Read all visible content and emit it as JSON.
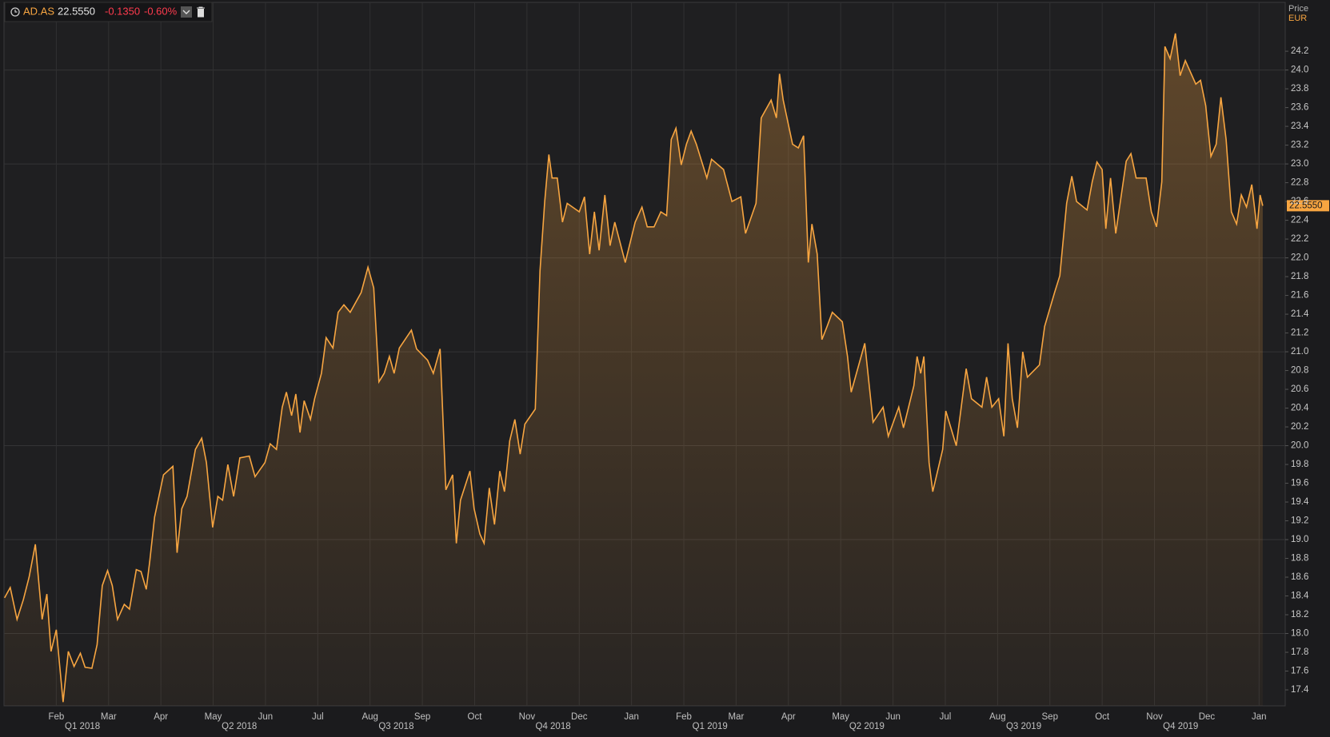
{
  "header": {
    "symbol": "AD.AS",
    "price": "22.5550",
    "change": "-0.1350",
    "change_pct": "-0.60%"
  },
  "chart_data": {
    "type": "area",
    "y_label": "Price",
    "y_unit": "EUR",
    "last_label": "22.5550",
    "color": "#f7a541",
    "grid": true,
    "xlim": [
      0,
      24.5
    ],
    "ylim": [
      17.23,
      24.72
    ],
    "xticks": [
      {
        "value": 1,
        "label": "Feb"
      },
      {
        "value": 2,
        "label": "Mar"
      },
      {
        "value": 3,
        "label": "Apr"
      },
      {
        "value": 4,
        "label": "May"
      },
      {
        "value": 5,
        "label": "Jun"
      },
      {
        "value": 6,
        "label": "Jul"
      },
      {
        "value": 7,
        "label": "Aug"
      },
      {
        "value": 8,
        "label": "Sep"
      },
      {
        "value": 9,
        "label": "Oct"
      },
      {
        "value": 10,
        "label": "Nov"
      },
      {
        "value": 11,
        "label": "Dec"
      },
      {
        "value": 12,
        "label": "Jan"
      },
      {
        "value": 13,
        "label": "Feb"
      },
      {
        "value": 14,
        "label": "Mar"
      },
      {
        "value": 15,
        "label": "Apr"
      },
      {
        "value": 16,
        "label": "May"
      },
      {
        "value": 17,
        "label": "Jun"
      },
      {
        "value": 18,
        "label": "Jul"
      },
      {
        "value": 19,
        "label": "Aug"
      },
      {
        "value": 20,
        "label": "Sep"
      },
      {
        "value": 21,
        "label": "Oct"
      },
      {
        "value": 22,
        "label": "Nov"
      },
      {
        "value": 23,
        "label": "Dec"
      },
      {
        "value": 24,
        "label": "Jan"
      }
    ],
    "xticks_quarter": [
      {
        "value": 1.5,
        "label": "Q1 2018"
      },
      {
        "value": 4.5,
        "label": "Q2 2018"
      },
      {
        "value": 7.5,
        "label": "Q3 2018"
      },
      {
        "value": 10.5,
        "label": "Q4 2018"
      },
      {
        "value": 13.5,
        "label": "Q1 2019"
      },
      {
        "value": 16.5,
        "label": "Q2 2019"
      },
      {
        "value": 19.5,
        "label": "Q3 2019"
      },
      {
        "value": 22.5,
        "label": "Q4 2019"
      }
    ],
    "yticks": [
      17.4,
      17.6,
      17.8,
      {
        "value": 18,
        "label": "18.0"
      },
      18.2,
      18.4,
      18.6,
      18.8,
      {
        "value": 19,
        "label": "19.0"
      },
      19.2,
      19.4,
      19.6,
      19.8,
      {
        "value": 20,
        "label": "20.0"
      },
      20.2,
      20.4,
      20.6,
      20.8,
      {
        "value": 21,
        "label": "21.0"
      },
      21.2,
      21.4,
      21.6,
      21.8,
      {
        "value": 22,
        "label": "22.0"
      },
      22.2,
      22.4,
      22.6,
      22.8,
      {
        "value": 23,
        "label": "23.0"
      },
      23.2,
      23.4,
      23.6,
      23.8,
      {
        "value": 24,
        "label": "24.0"
      },
      24.2
    ],
    "x": [
      0.01,
      0.12,
      0.25,
      0.37,
      0.48,
      0.6,
      0.73,
      0.82,
      0.9,
      1.0,
      1.13,
      1.23,
      1.34,
      1.46,
      1.55,
      1.68,
      1.78,
      1.88,
      1.98,
      2.07,
      2.17,
      2.3,
      2.4,
      2.53,
      2.62,
      2.72,
      2.79,
      2.88,
      3.05,
      3.23,
      3.31,
      3.4,
      3.5,
      3.66,
      3.78,
      3.87,
      3.99,
      4.09,
      4.18,
      4.28,
      4.39,
      4.51,
      4.69,
      4.8,
      4.99,
      5.09,
      5.21,
      5.32,
      5.4,
      5.5,
      5.58,
      5.66,
      5.74,
      5.86,
      5.94,
      6.07,
      6.16,
      6.29,
      6.39,
      6.5,
      6.62,
      6.83,
      6.96,
      7.07,
      7.17,
      7.27,
      7.37,
      7.46,
      7.56,
      7.79,
      7.89,
      8.1,
      8.21,
      8.34,
      8.45,
      8.58,
      8.65,
      8.73,
      8.91,
      8.99,
      9.1,
      9.18,
      9.28,
      9.38,
      9.48,
      9.57,
      9.67,
      9.77,
      9.87,
      9.96,
      10.16,
      10.25,
      10.34,
      10.42,
      10.48,
      10.58,
      10.68,
      10.77,
      11.0,
      11.1,
      11.2,
      11.29,
      11.38,
      11.49,
      11.59,
      11.68,
      11.88,
      12.07,
      12.2,
      12.3,
      12.43,
      12.56,
      12.67,
      12.76,
      12.85,
      12.95,
      13.05,
      13.14,
      13.24,
      13.44,
      13.53,
      13.76,
      13.92,
      14.09,
      14.18,
      14.38,
      14.48,
      14.67,
      14.77,
      14.83,
      14.9,
      15.08,
      15.19,
      15.29,
      15.38,
      15.45,
      15.55,
      15.64,
      15.74,
      15.84,
      16.03,
      16.13,
      16.2,
      16.46,
      16.62,
      16.81,
      16.91,
      17.11,
      17.2,
      17.4,
      17.46,
      17.53,
      17.59,
      17.69,
      17.76,
      17.95,
      18.01,
      18.21,
      18.4,
      18.5,
      18.7,
      18.79,
      18.89,
      19.02,
      19.12,
      19.2,
      19.28,
      19.38,
      19.48,
      19.57,
      19.8,
      19.9,
      20.09,
      20.19,
      20.32,
      20.42,
      20.51,
      20.71,
      20.81,
      20.9,
      21.0,
      21.07,
      21.16,
      21.26,
      21.46,
      21.55,
      21.65,
      21.84,
      21.94,
      22.04,
      22.14,
      22.2,
      22.3,
      22.4,
      22.49,
      22.59,
      22.79,
      22.88,
      22.98,
      23.08,
      23.18,
      23.27,
      23.37,
      23.47,
      23.57,
      23.66,
      23.76,
      23.86,
      23.96,
      24.02,
      24.07
    ],
    "values": [
      18.38,
      18.49,
      18.15,
      18.36,
      18.6,
      18.95,
      18.15,
      18.42,
      17.81,
      18.04,
      17.27,
      17.81,
      17.65,
      17.79,
      17.64,
      17.63,
      17.88,
      18.51,
      18.67,
      18.51,
      18.15,
      18.31,
      18.26,
      18.68,
      18.66,
      18.47,
      18.78,
      19.24,
      19.69,
      19.78,
      18.86,
      19.33,
      19.46,
      19.96,
      20.08,
      19.82,
      19.13,
      19.46,
      19.42,
      19.8,
      19.46,
      19.87,
      19.89,
      19.67,
      19.82,
      20.02,
      19.96,
      20.41,
      20.57,
      20.32,
      20.55,
      20.14,
      20.48,
      20.28,
      20.5,
      20.77,
      21.15,
      21.04,
      21.42,
      21.5,
      21.42,
      21.63,
      21.9,
      21.68,
      20.68,
      20.77,
      20.95,
      20.77,
      21.04,
      21.23,
      21.03,
      20.91,
      20.77,
      21.03,
      19.53,
      19.69,
      18.96,
      19.42,
      19.73,
      19.33,
      19.06,
      18.96,
      19.55,
      19.16,
      19.73,
      19.51,
      20.05,
      20.28,
      19.91,
      20.23,
      20.39,
      21.86,
      22.6,
      23.1,
      22.85,
      22.85,
      22.38,
      22.58,
      22.49,
      22.65,
      22.04,
      22.49,
      22.08,
      22.67,
      22.13,
      22.38,
      21.95,
      22.38,
      22.54,
      22.33,
      22.33,
      22.49,
      22.45,
      23.26,
      23.38,
      22.99,
      23.21,
      23.35,
      23.21,
      22.85,
      23.05,
      22.94,
      22.6,
      22.65,
      22.26,
      22.58,
      23.49,
      23.68,
      23.49,
      23.96,
      23.68,
      23.21,
      23.17,
      23.3,
      21.95,
      22.36,
      22.04,
      21.13,
      21.27,
      21.42,
      21.32,
      20.95,
      20.57,
      21.09,
      20.25,
      20.41,
      20.1,
      20.41,
      20.19,
      20.64,
      20.95,
      20.77,
      20.95,
      19.82,
      19.51,
      19.96,
      20.37,
      20.0,
      20.82,
      20.5,
      20.41,
      20.73,
      20.41,
      20.5,
      20.1,
      21.09,
      20.5,
      20.19,
      21.0,
      20.73,
      20.86,
      21.27,
      21.63,
      21.81,
      22.58,
      22.87,
      22.6,
      22.51,
      22.81,
      23.02,
      22.94,
      22.31,
      22.85,
      22.26,
      23.03,
      23.11,
      22.85,
      22.85,
      22.49,
      22.33,
      22.81,
      24.25,
      24.12,
      24.39,
      23.94,
      24.1,
      23.85,
      23.89,
      23.62,
      23.08,
      23.21,
      23.71,
      23.26,
      22.49,
      22.36,
      22.67,
      22.54,
      22.78,
      22.31,
      22.67,
      22.555
    ]
  }
}
